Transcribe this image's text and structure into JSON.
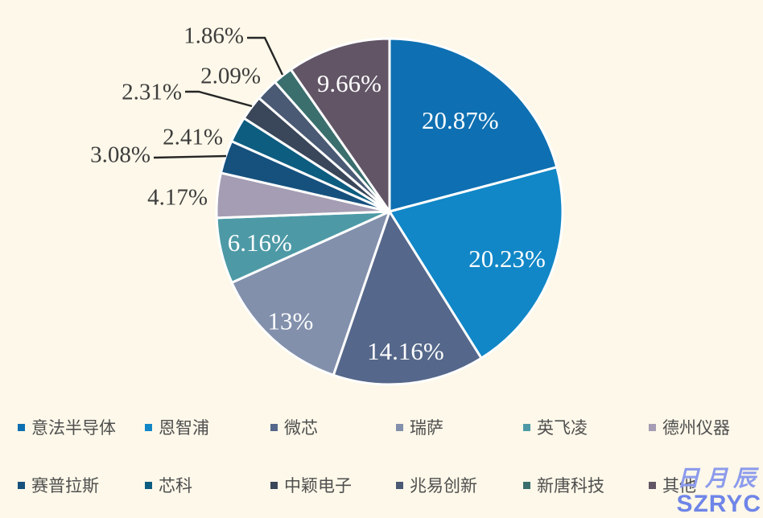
{
  "background_color": "#fdf8e9",
  "chart_data": {
    "type": "pie",
    "title": "",
    "units": "%",
    "start_angle_deg": 0,
    "direction": "clockwise",
    "legend_position": "bottom",
    "segments": [
      {
        "label": "意法半导体",
        "value": 20.87,
        "display": "20.87%",
        "color": "#0e70b2",
        "label_placement": "inside"
      },
      {
        "label": "恩智浦",
        "value": 20.23,
        "display": "20.23%",
        "color": "#1187c7",
        "label_placement": "inside"
      },
      {
        "label": "微芯",
        "value": 14.16,
        "display": "14.16%",
        "color": "#55678a",
        "label_placement": "inside"
      },
      {
        "label": "瑞萨",
        "value": 13.0,
        "display": "13%",
        "color": "#8290ac",
        "label_placement": "inside"
      },
      {
        "label": "英飞凌",
        "value": 6.16,
        "display": "6.16%",
        "color": "#4d9aa6",
        "label_placement": "inside"
      },
      {
        "label": "德州仪器",
        "value": 4.17,
        "display": "4.17%",
        "color": "#a59db3",
        "label_placement": "outside"
      },
      {
        "label": "赛普拉斯",
        "value": 3.08,
        "display": "3.08%",
        "color": "#16517e",
        "label_placement": "outside"
      },
      {
        "label": "芯科",
        "value": 2.41,
        "display": "2.41%",
        "color": "#0d5d80",
        "label_placement": "outside"
      },
      {
        "label": "中颖电子",
        "value": 2.31,
        "display": "2.31%",
        "color": "#3a4659",
        "label_placement": "outside"
      },
      {
        "label": "兆易创新",
        "value": 2.09,
        "display": "2.09%",
        "color": "#4a5a74",
        "label_placement": "outside"
      },
      {
        "label": "新唐科技",
        "value": 1.86,
        "display": "1.86%",
        "color": "#3a6f6e",
        "label_placement": "outside"
      },
      {
        "label": "其他",
        "value": 9.66,
        "display": "9.66%",
        "color": "#625666",
        "label_placement": "inside"
      }
    ]
  },
  "watermark": {
    "cn": "日月辰",
    "en": "SZRYC"
  }
}
